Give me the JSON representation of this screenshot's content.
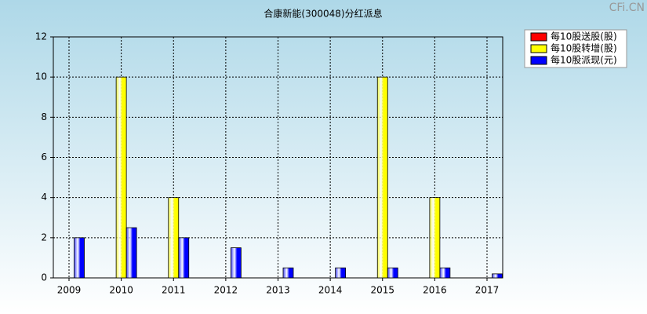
{
  "chart_data": {
    "type": "bar",
    "title": "合康新能(300048)分红派息",
    "watermark": "CFi.CN",
    "categories": [
      "2009",
      "2010",
      "2011",
      "2012",
      "2013",
      "2014",
      "2015",
      "2016",
      "2017"
    ],
    "series": [
      {
        "name": "每10股送股(股)",
        "color": "#ff0000",
        "values": [
          0,
          0,
          0,
          0,
          0,
          0,
          0,
          0,
          0
        ]
      },
      {
        "name": "每10股转增(股)",
        "color": "#ffff00",
        "values": [
          0,
          10,
          4,
          0,
          0,
          0,
          10,
          4,
          0
        ]
      },
      {
        "name": "每10股派现(元)",
        "color": "#0000ff",
        "values": [
          2,
          2.5,
          2,
          1.5,
          0.5,
          0.5,
          0.5,
          0.5,
          0.2
        ]
      }
    ],
    "ylim": [
      0,
      12
    ],
    "yticks": [
      0,
      2,
      4,
      6,
      8,
      10,
      12
    ],
    "grid": true,
    "legend": "top-right"
  }
}
